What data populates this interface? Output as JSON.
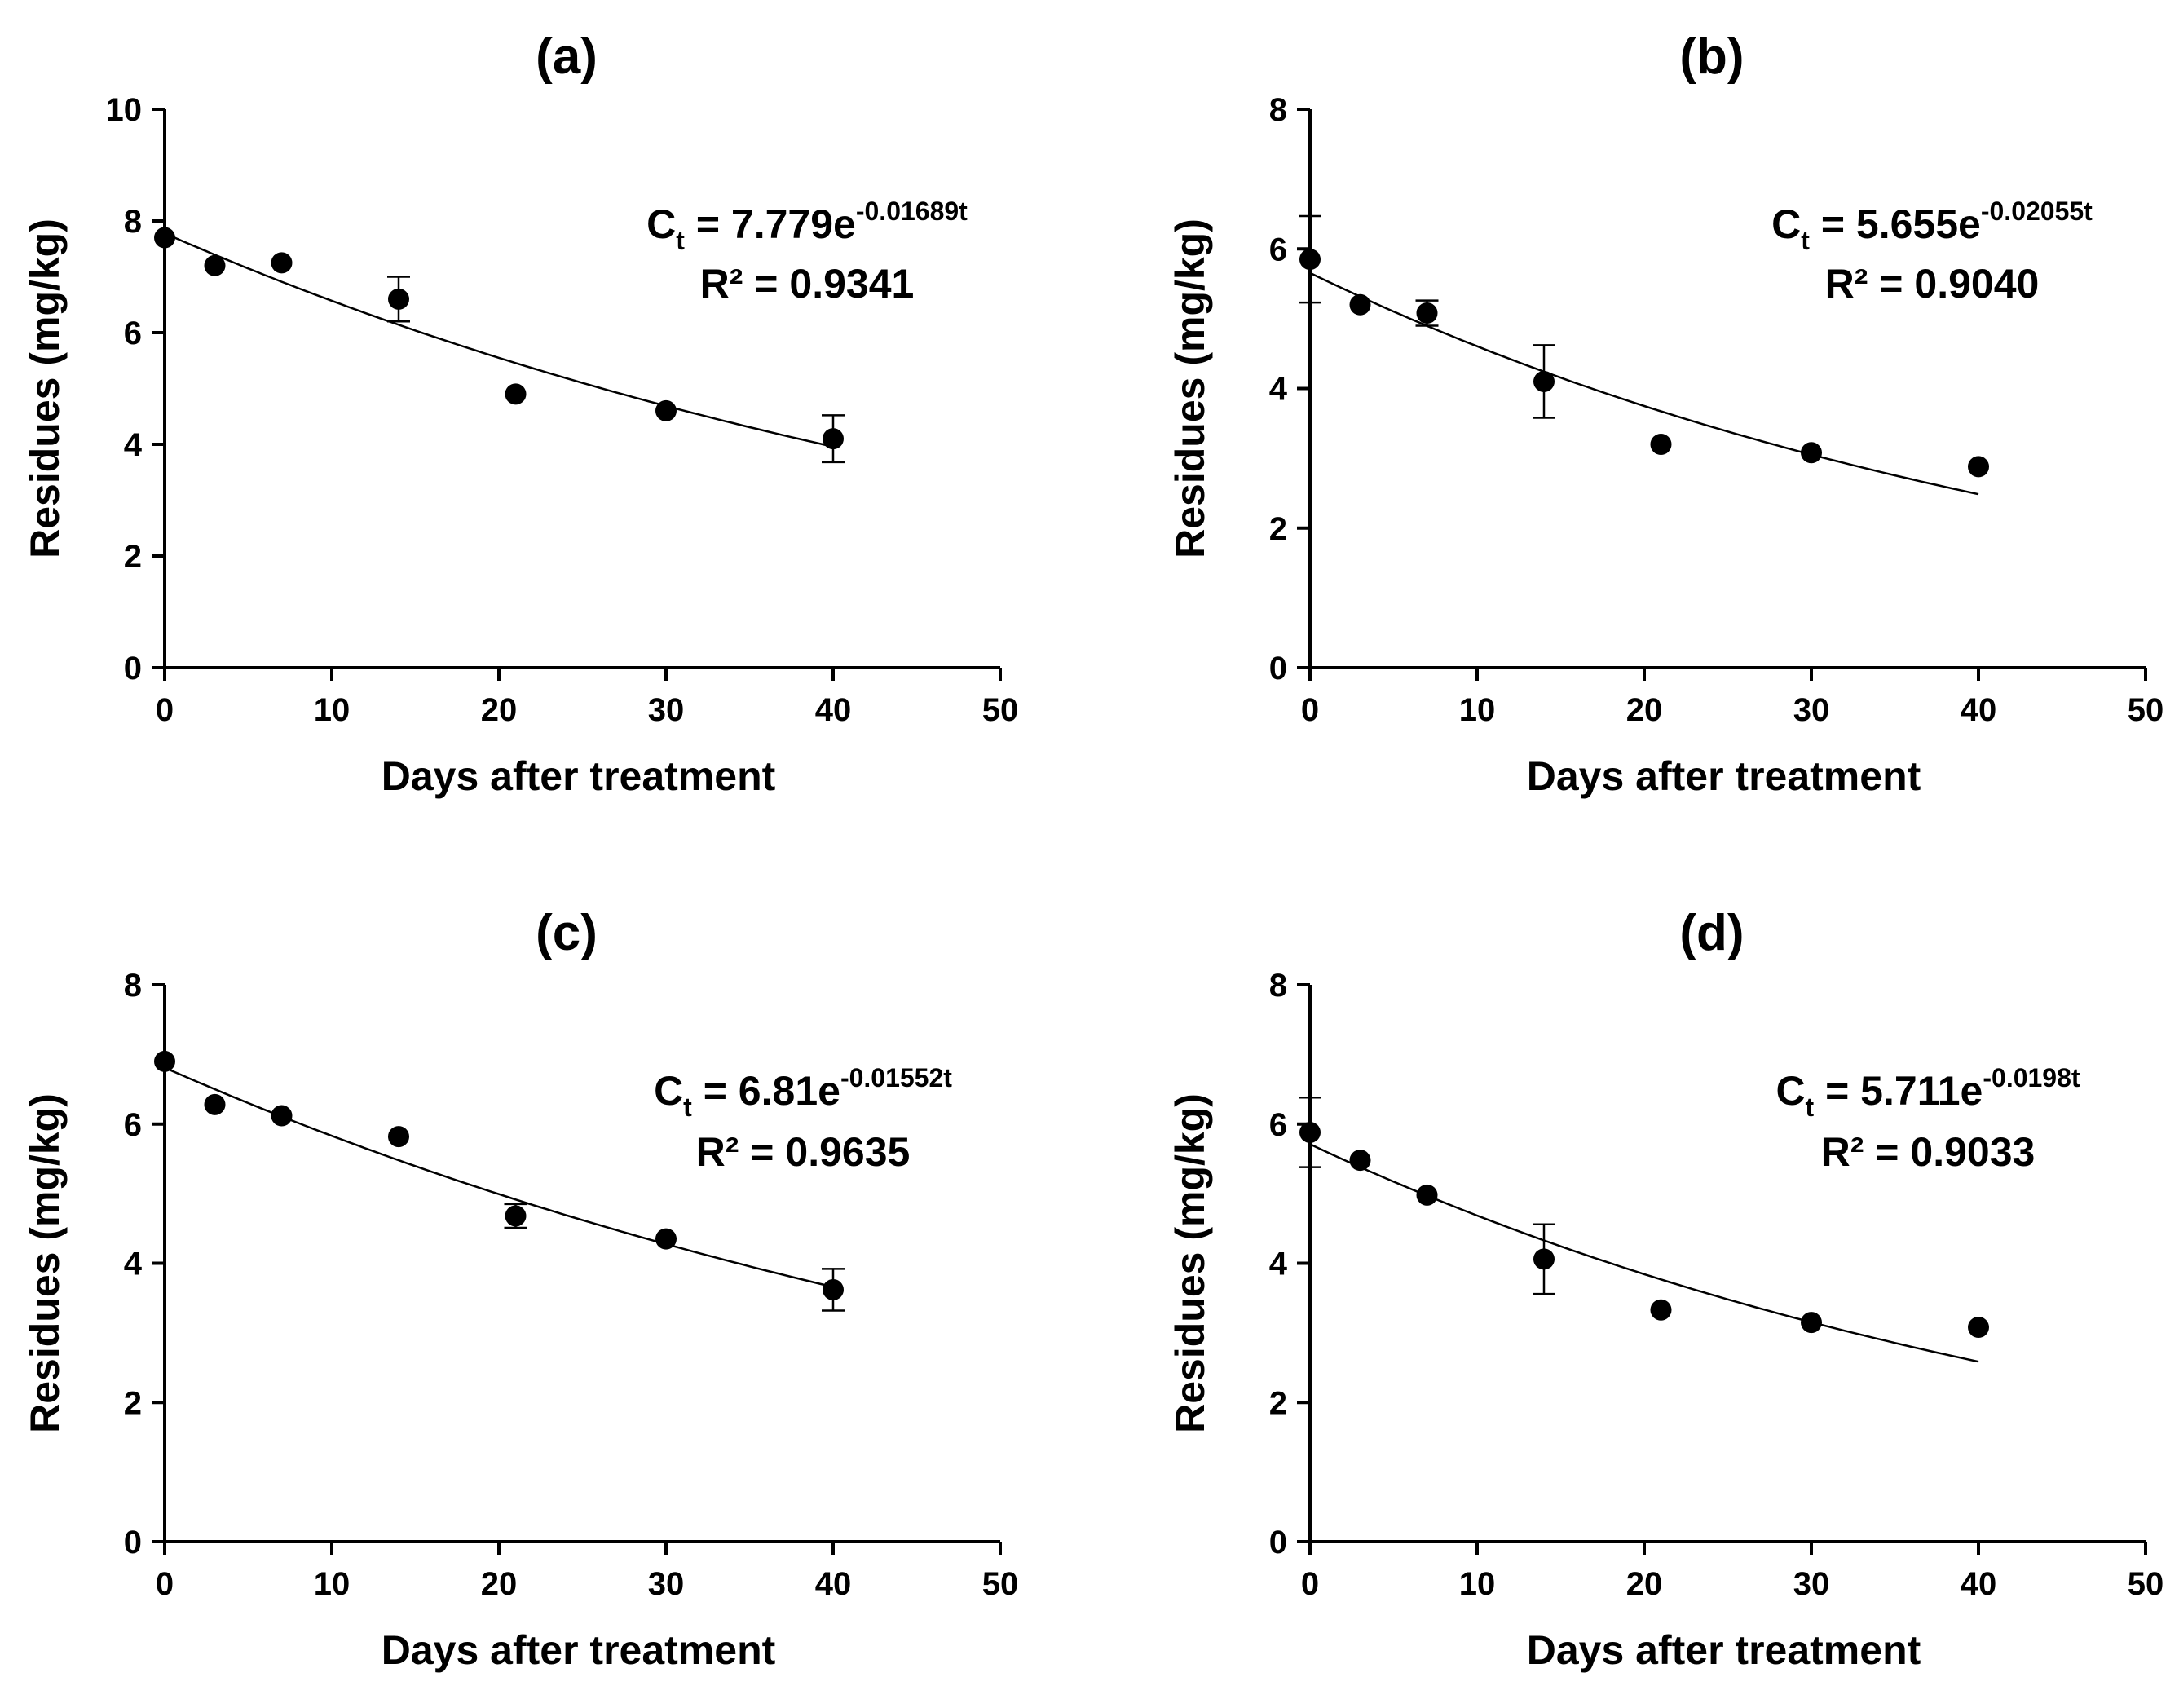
{
  "chart_data": [
    {
      "type": "scatter",
      "title": "(a)",
      "xlabel": "Days after treatment",
      "ylabel": "Residues (mg/kg)",
      "xlim": [
        0,
        50
      ],
      "ylim": [
        0,
        10
      ],
      "xticks": [
        "0",
        "10",
        "20",
        "30",
        "40",
        "50"
      ],
      "yticks": [
        "0",
        "2",
        "4",
        "6",
        "8",
        "10"
      ],
      "x": [
        0,
        3,
        7,
        14,
        21,
        30,
        40
      ],
      "y": [
        7.7,
        7.2,
        7.25,
        6.6,
        4.9,
        4.6,
        4.1
      ],
      "error": [
        0.0,
        0.0,
        0.0,
        0.4,
        0.0,
        0.0,
        0.42
      ],
      "fit": {
        "type": "exponential",
        "a": 7.779,
        "k": 0.01689,
        "x_range": [
          0,
          40
        ]
      },
      "equation": {
        "lhs": "C",
        "lhs_sub": "t",
        "rhs_base": " = 7.779e",
        "rhs_exp": "-0.01689t",
        "r2": "R² = 0.9341"
      },
      "grid": false
    },
    {
      "type": "scatter",
      "title": "(b)",
      "xlabel": "Days after treatment",
      "ylabel": "Residues (mg/kg)",
      "xlim": [
        0,
        50
      ],
      "ylim": [
        0,
        8
      ],
      "xticks": [
        "0",
        "10",
        "20",
        "30",
        "40",
        "50"
      ],
      "yticks": [
        "0",
        "2",
        "4",
        "6",
        "8"
      ],
      "x": [
        0,
        3,
        7,
        14,
        21,
        30,
        40
      ],
      "y": [
        5.85,
        5.2,
        5.08,
        4.1,
        3.2,
        3.08,
        2.88
      ],
      "error": [
        0.62,
        0.0,
        0.18,
        0.52,
        0.0,
        0.0,
        0.0
      ],
      "fit": {
        "type": "exponential",
        "a": 5.655,
        "k": 0.02055,
        "x_range": [
          0,
          40
        ]
      },
      "equation": {
        "lhs": "C",
        "lhs_sub": "t",
        "rhs_base": " = 5.655e",
        "rhs_exp": "-0.02055t",
        "r2": "R² = 0.9040"
      },
      "grid": false
    },
    {
      "type": "scatter",
      "title": "(c)",
      "xlabel": "Days after treatment",
      "ylabel": "Residues (mg/kg)",
      "xlim": [
        0,
        50
      ],
      "ylim": [
        0,
        8
      ],
      "xticks": [
        "0",
        "10",
        "20",
        "30",
        "40",
        "50"
      ],
      "yticks": [
        "0",
        "2",
        "4",
        "6",
        "8"
      ],
      "x": [
        0,
        3,
        7,
        14,
        21,
        30,
        40
      ],
      "y": [
        6.9,
        6.28,
        6.12,
        5.82,
        4.68,
        4.35,
        3.62
      ],
      "error": [
        0.0,
        0.0,
        0.0,
        0.0,
        0.17,
        0.0,
        0.3
      ],
      "fit": {
        "type": "exponential",
        "a": 6.81,
        "k": 0.01552,
        "x_range": [
          0,
          40
        ]
      },
      "equation": {
        "lhs": "C",
        "lhs_sub": "t",
        "rhs_base": " = 6.81e",
        "rhs_exp": "-0.01552t",
        "r2": "R² = 0.9635"
      },
      "grid": false
    },
    {
      "type": "scatter",
      "title": "(d)",
      "xlabel": "Days after treatment",
      "ylabel": "Residues (mg/kg)",
      "xlim": [
        0,
        50
      ],
      "ylim": [
        0,
        8
      ],
      "xticks": [
        "0",
        "10",
        "20",
        "30",
        "40",
        "50"
      ],
      "yticks": [
        "0",
        "2",
        "4",
        "6",
        "8"
      ],
      "x": [
        0,
        3,
        7,
        14,
        21,
        30,
        40
      ],
      "y": [
        5.88,
        5.48,
        4.98,
        4.06,
        3.33,
        3.15,
        3.08
      ],
      "error": [
        0.5,
        0.0,
        0.0,
        0.5,
        0.0,
        0.0,
        0.0
      ],
      "fit": {
        "type": "exponential",
        "a": 5.711,
        "k": 0.0198,
        "x_range": [
          0,
          40
        ]
      },
      "equation": {
        "lhs": "C",
        "lhs_sub": "t",
        "rhs_base": " = 5.711e",
        "rhs_exp": "-0.0198t",
        "r2": "R² = 0.9033"
      },
      "grid": false
    }
  ]
}
